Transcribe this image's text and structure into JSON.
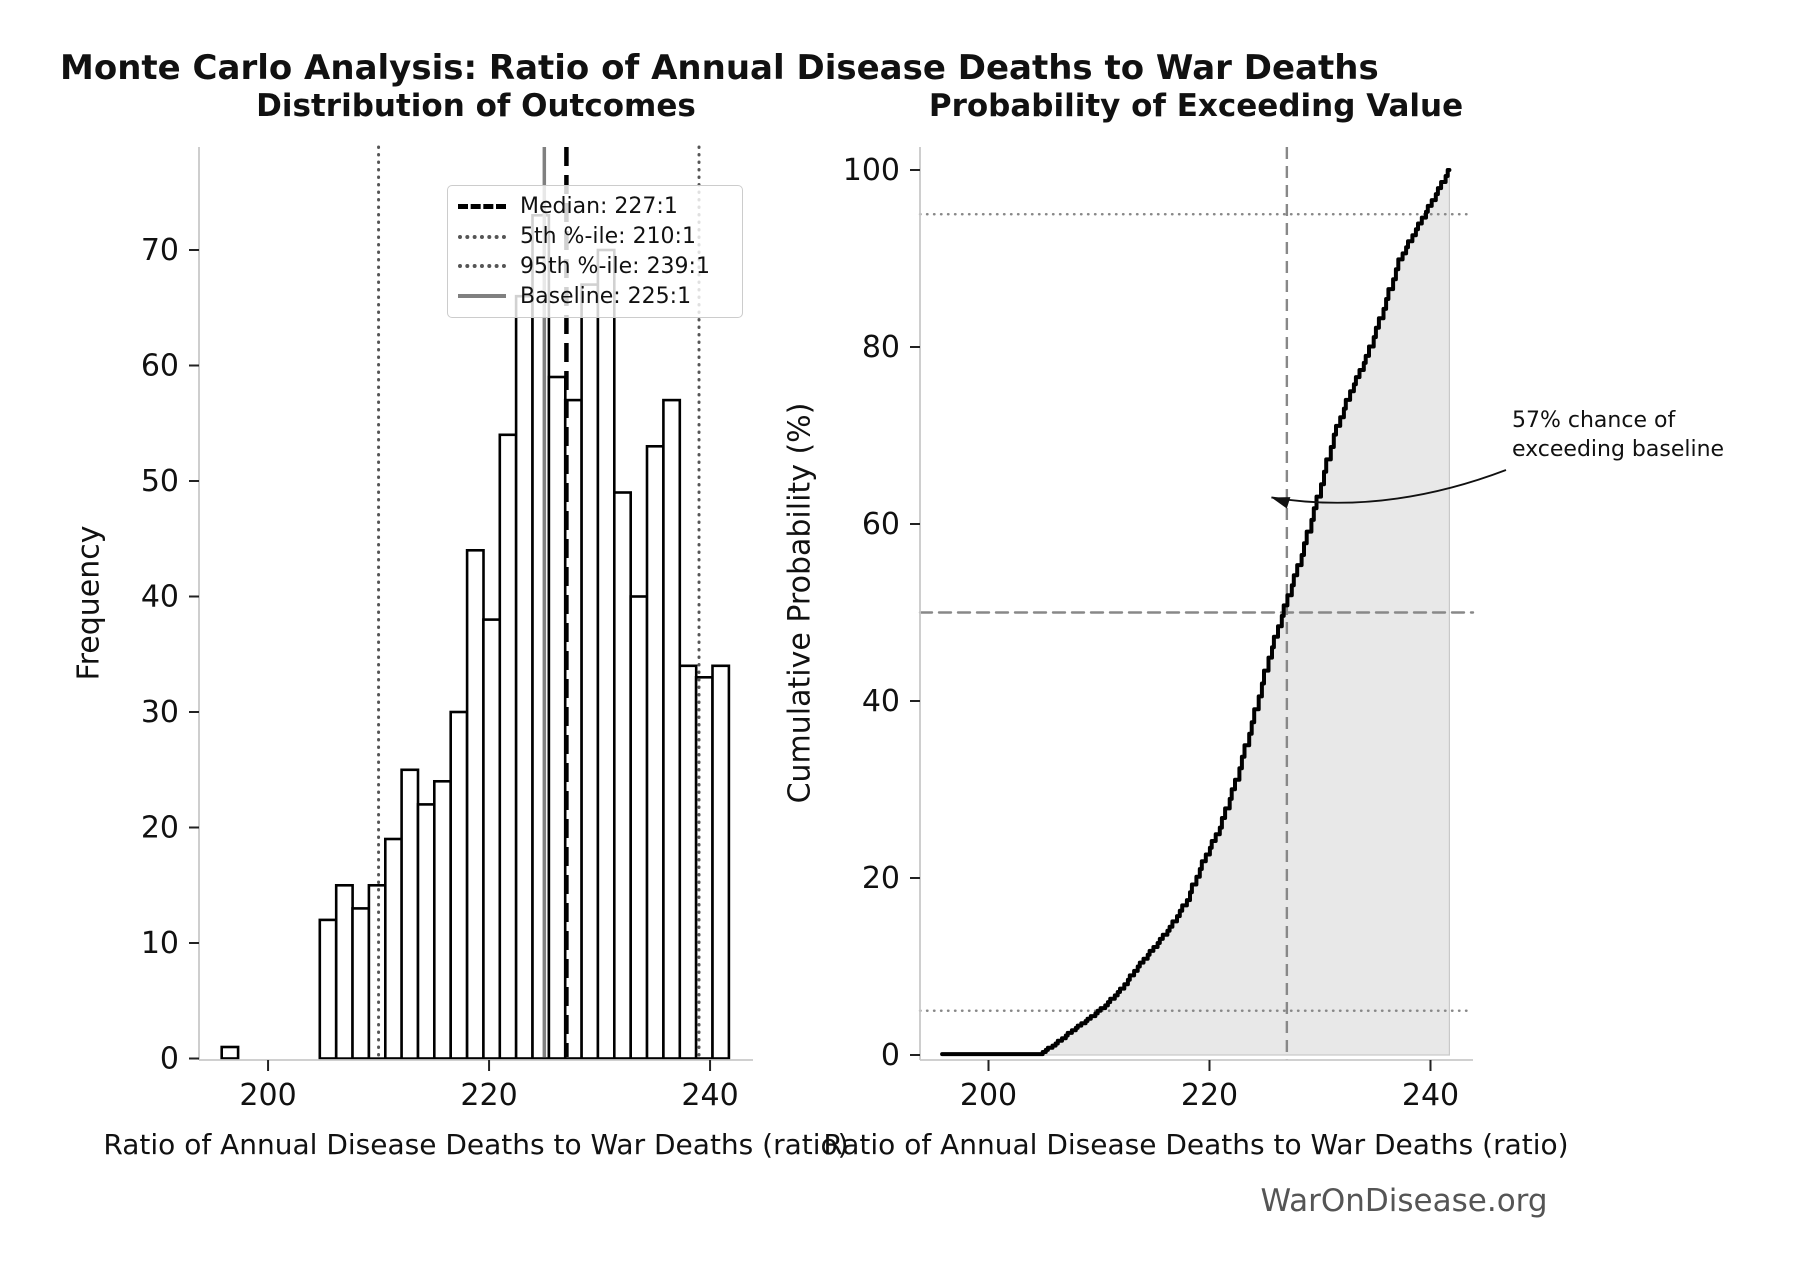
{
  "title": "Monte Carlo Analysis: Ratio of Annual Disease Deaths to War Deaths",
  "footer": "WarOnDisease.org",
  "left_plot": {
    "title": "Distribution of Outcomes",
    "xlabel": "Ratio of Annual Disease Deaths to War Deaths (ratio)",
    "ylabel": "Frequency",
    "legend": [
      {
        "label": "Median: 227:1",
        "style": "median"
      },
      {
        "label": "5th %-ile: 210:1",
        "style": "dotted"
      },
      {
        "label": "95th %-ile: 239:1",
        "style": "dotted"
      },
      {
        "label": "Baseline: 225:1",
        "style": "baseline"
      }
    ]
  },
  "right_plot": {
    "title": "Probability of Exceeding Value",
    "xlabel": "Ratio of Annual Disease Deaths to War Deaths (ratio)",
    "ylabel": "Cumulative Probability (%)",
    "annotation": "57% chance of\nexceeding baseline",
    "exceed_probability_pct": 57
  },
  "chart_data": [
    {
      "type": "bar",
      "subtype": "histogram",
      "title": "Distribution of Outcomes",
      "xlabel": "Ratio of Annual Disease Deaths to War Deaths (ratio)",
      "ylabel": "Frequency",
      "bin_start": 195.8,
      "bin_width": 1.4806,
      "counts": [
        1,
        0,
        0,
        0,
        0,
        0,
        12,
        15,
        13,
        15,
        19,
        25,
        22,
        24,
        30,
        44,
        38,
        54,
        66,
        73,
        59,
        57,
        67,
        70,
        49,
        40,
        53,
        57,
        34,
        33,
        34
      ],
      "xticks": [
        200,
        220,
        240
      ],
      "yticks": [
        0,
        10,
        20,
        30,
        40,
        50,
        60,
        70
      ],
      "xlim": [
        193.75,
        243.9
      ],
      "ylim": [
        0,
        79
      ],
      "grid": false,
      "bar_fill": "#ffffff",
      "bar_edge": "#000000",
      "ref_lines": {
        "median": 227,
        "p5": 210,
        "p95": 239,
        "baseline": 225
      },
      "ref_colors": {
        "median": "#000000",
        "percentile": "#555555",
        "baseline": "#808080"
      }
    },
    {
      "type": "line",
      "subtype": "empirical-cdf",
      "title": "Probability of Exceeding Value",
      "xlabel": "Ratio of Annual Disease Deaths to War Deaths (ratio)",
      "ylabel": "Cumulative Probability (%)",
      "x": [
        195.8,
        197.28,
        204.68,
        206.16,
        207.65,
        209.13,
        210.61,
        212.09,
        213.57,
        215.05,
        216.53,
        218.01,
        219.49,
        220.98,
        222.46,
        223.94,
        225.42,
        226.9,
        228.38,
        229.86,
        231.34,
        232.82,
        234.31,
        235.79,
        237.27,
        238.75,
        240.23,
        241.71
      ],
      "y": [
        0.1,
        0.1,
        0.1,
        1.3,
        2.8,
        4.1,
        5.6,
        7.5,
        10.0,
        12.2,
        14.5,
        17.5,
        21.9,
        25.7,
        31.1,
        37.6,
        44.9,
        50.8,
        56.5,
        63.1,
        70.1,
        75.0,
        79.0,
        84.3,
        89.9,
        93.3,
        96.6,
        100
      ],
      "xticks": [
        200,
        220,
        240
      ],
      "yticks": [
        0,
        20,
        40,
        60,
        80,
        100
      ],
      "xlim": [
        193.8,
        243.9
      ],
      "ylim": [
        0,
        102
      ],
      "grid": false,
      "line_color": "#000000",
      "fill_color": "#e8e8e8",
      "fill_to_x": 241.71,
      "ref_lines": {
        "vline_median": 227,
        "hline_50": 50,
        "hline_95": 95,
        "hline_5": 5
      },
      "annotation_target": [
        225.6,
        63
      ]
    }
  ]
}
